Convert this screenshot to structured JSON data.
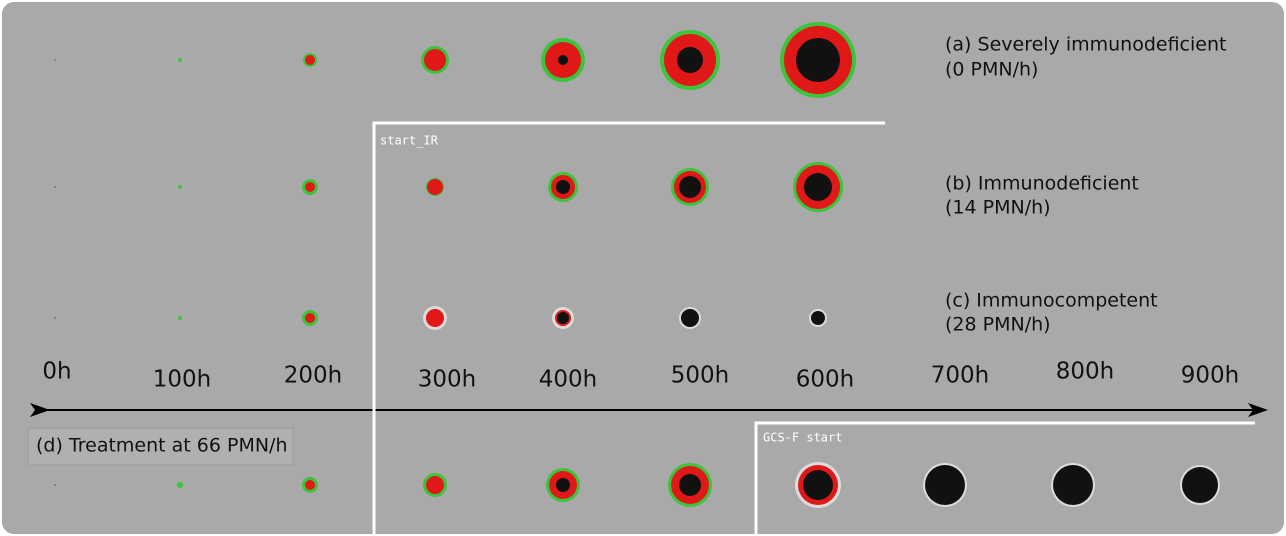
{
  "rows": [
    {
      "label": "(a) Severely immunodeficient",
      "sublabel": "(0 PMN/h)"
    },
    {
      "label": "(b) Immunodeficient",
      "sublabel": "(14 PMN/h)"
    },
    {
      "label": "(c) Immunocompetent",
      "sublabel": "(28 PMN/h)"
    },
    {
      "label": "(d) Treatment at 66 PMN/h"
    }
  ],
  "time_labels": [
    "0h",
    "100h",
    "200h",
    "300h",
    "400h",
    "500h",
    "600h",
    "700h",
    "800h",
    "900h"
  ],
  "annotations": {
    "start_ir": "start_IR",
    "gcsf_start": "GCS-F start"
  }
}
